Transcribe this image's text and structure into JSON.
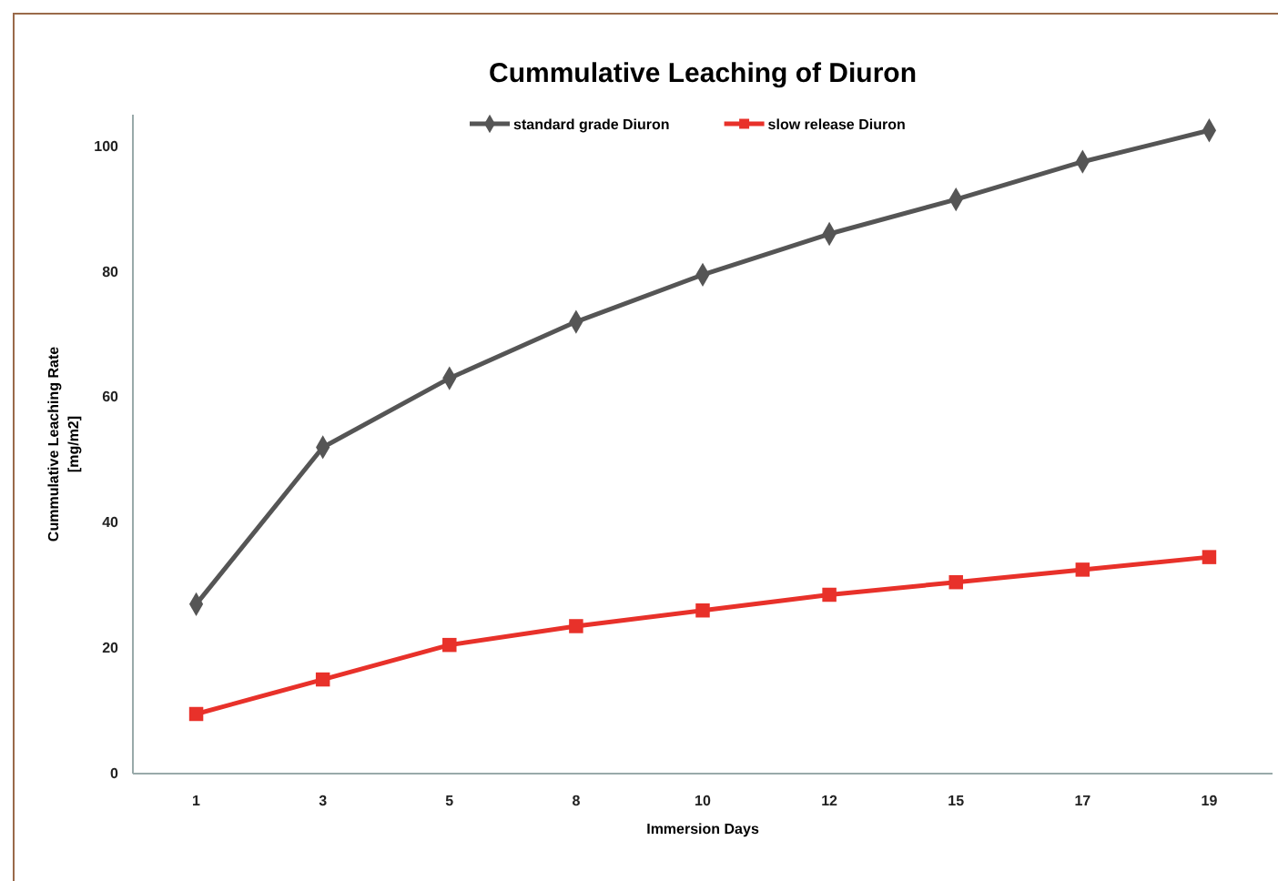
{
  "chart_data": {
    "type": "line",
    "title": "Cummulative Leaching of Diuron",
    "xlabel": "Immersion Days",
    "ylabel": "Cummulative Leaching Rate\n[mg/m2]",
    "categories": [
      "1",
      "3",
      "5",
      "8",
      "10",
      "12",
      "15",
      "17",
      "19"
    ],
    "series": [
      {
        "name": "standard grade Diuron",
        "color": "#555555",
        "marker": "diamond",
        "values": [
          27,
          52,
          63,
          72,
          79.5,
          86,
          91.5,
          97.5,
          102.5
        ]
      },
      {
        "name": "slow release Diuron",
        "color": "#e8312a",
        "marker": "square",
        "values": [
          9.5,
          15,
          20.5,
          23.5,
          26,
          28.5,
          30.5,
          32.5,
          34.5
        ]
      }
    ],
    "ylim": [
      0,
      105
    ],
    "yticks": [
      0,
      20,
      40,
      60,
      80,
      100
    ],
    "grid": false,
    "legend": "top",
    "line_style": "solid"
  }
}
